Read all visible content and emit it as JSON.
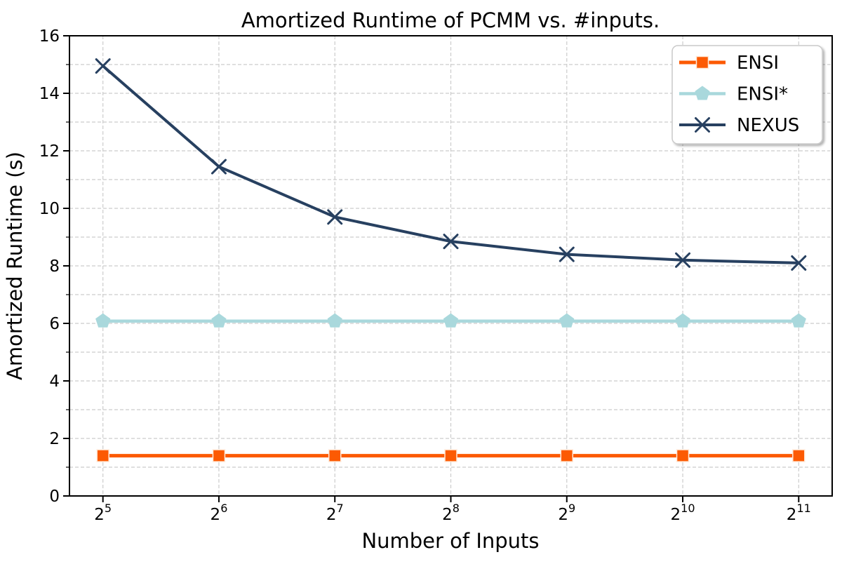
{
  "chart_data": {
    "type": "line",
    "title": "Amortized Runtime of PCMM vs. #inputs.",
    "xlabel": "Number of Inputs",
    "ylabel": "Amortized Runtime (s)",
    "x_tick_labels": [
      "2^5",
      "2^6",
      "2^7",
      "2^8",
      "2^9",
      "2^10",
      "2^11"
    ],
    "y_ticks": [
      0,
      2,
      4,
      6,
      8,
      10,
      12,
      14,
      16
    ],
    "ylim": [
      0,
      16
    ],
    "y_minor_step": 1,
    "grid": true,
    "grid_style": "dashed",
    "legend_position": "upper right",
    "series": [
      {
        "name": "ENSI",
        "color": "#fc5a03",
        "marker": "square",
        "marker_edge": "#ffe9d8",
        "line_width": 5,
        "values": [
          1.4,
          1.4,
          1.4,
          1.4,
          1.4,
          1.4,
          1.4
        ]
      },
      {
        "name": "ENSI*",
        "color": "#a9d8dc",
        "marker": "pentagon",
        "marker_edge": "#a9d8dc",
        "line_width": 4.5,
        "values": [
          6.08,
          6.08,
          6.08,
          6.08,
          6.08,
          6.08,
          6.08
        ]
      },
      {
        "name": "NEXUS",
        "color": "#274060",
        "marker": "x",
        "marker_edge": "#274060",
        "line_width": 4,
        "values": [
          14.95,
          11.45,
          9.7,
          8.85,
          8.4,
          8.2,
          8.1
        ]
      }
    ],
    "colors": {
      "grid": "#cccccc",
      "spine": "#000000",
      "legend_border": "#c9c9c9",
      "background": "#ffffff"
    }
  }
}
